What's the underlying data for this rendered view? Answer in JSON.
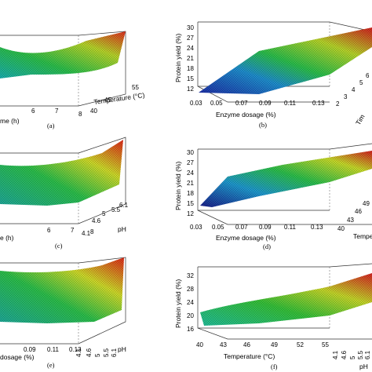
{
  "chart_data": [
    {
      "type": "surface",
      "panel_label": "(a)",
      "x_tick_labels": [
        "6",
        "7",
        "8"
      ],
      "x_label_partial": "me (h)",
      "y_tick_labels": [
        "40",
        "45",
        "55"
      ],
      "y_label": "Temperature (°C)",
      "colors": [
        "#2a3fb0",
        "#22c07a",
        "#3fc83a",
        "#d8e22a",
        "#e23c2a"
      ]
    },
    {
      "type": "surface",
      "panel_label": "(b)",
      "x_tick_labels": [
        "0.03",
        "0.05",
        "0.07",
        "0.09",
        "0.11",
        "0.13"
      ],
      "x_label": "Enzyme dosage (%)",
      "z_tick_labels": [
        "12",
        "15",
        "18",
        "21",
        "24",
        "27",
        "30"
      ],
      "z_label": "Protein yield (%)",
      "y_tick_labels": [
        "2",
        "3",
        "4",
        "5",
        "6"
      ],
      "y_label_partial": "Tim",
      "zlim": [
        12,
        30
      ]
    },
    {
      "type": "surface",
      "panel_label": "(c)",
      "x_tick_labels": [
        "6",
        "7",
        "8"
      ],
      "x_label_partial": "e (h)",
      "y_tick_labels": [
        "4.1",
        "4.6",
        "5",
        "5.5",
        "6.1"
      ],
      "y_label": "pH"
    },
    {
      "type": "surface",
      "panel_label": "(d)",
      "x_tick_labels": [
        "0.03",
        "0.05",
        "0.07",
        "0.09",
        "0.11",
        "0.13"
      ],
      "x_label": "Enzyme dosage (%)",
      "z_tick_labels": [
        "12",
        "15",
        "18",
        "21",
        "24",
        "27",
        "30"
      ],
      "z_label": "Protein yield (%)",
      "y_tick_labels": [
        "40",
        "43",
        "46",
        "49"
      ],
      "y_label_partial": "Tempe",
      "zlim": [
        12,
        30
      ]
    },
    {
      "type": "surface",
      "panel_label": "(e)",
      "x_tick_labels": [
        "0.09",
        "0.11",
        "0.13"
      ],
      "x_label_partial": "dosage (%)",
      "y_tick_labels": [
        "4.1",
        "4.6",
        "5",
        "5.5",
        "6.1"
      ],
      "y_label": "pH"
    },
    {
      "type": "surface",
      "panel_label": "(f)",
      "x_tick_labels": [
        "40",
        "43",
        "46",
        "49",
        "52",
        "55"
      ],
      "x_label": "Temperature (°C)",
      "z_tick_labels": [
        "16",
        "20",
        "24",
        "28",
        "32"
      ],
      "z_label": "Protein yield (%)",
      "y_tick_labels": [
        "4.1",
        "4.6",
        "5",
        "5.5",
        "6.1"
      ],
      "y_label": "pH",
      "zlim": [
        16,
        32
      ]
    }
  ]
}
